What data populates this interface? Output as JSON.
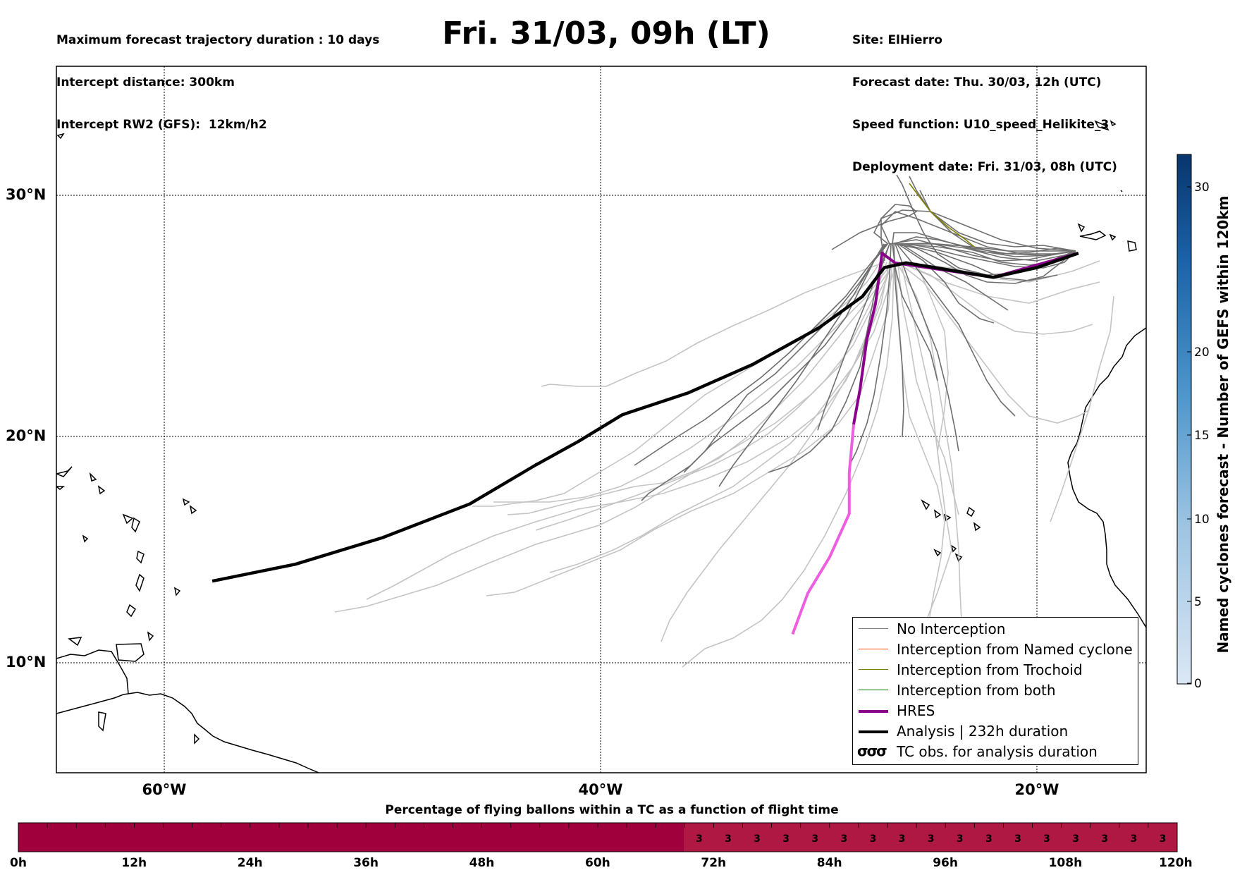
{
  "header": {
    "left_lines": [
      "Maximum forecast trajectory duration : 10 days",
      "Intercept distance: 300km",
      "Intercept RW2 (GFS):  12km/h2"
    ],
    "title": "Fri. 31/03, 09h (LT)",
    "right_lines": [
      "Site: ElHierro",
      "Forecast date: Thu. 30/03, 12h (UTC)",
      "Speed function: U10_speed_Helikite_3",
      "Deployment date: Fri. 31/03, 08h (UTC)"
    ]
  },
  "legend": {
    "items": [
      {
        "label": "No Interception",
        "color": "#808080"
      },
      {
        "label": "Interception from Named cyclone",
        "color": "#ff4500"
      },
      {
        "label": "Interception from Trochoid",
        "color": "#808000"
      },
      {
        "label": "Interception from both",
        "color": "#008000"
      },
      {
        "label": "HRES",
        "color": "#8b008b"
      },
      {
        "label": "Analysis | 232h duration",
        "color": "#000000"
      },
      {
        "label": "TC obs. for analysis duration",
        "symbol": "σσσ"
      }
    ]
  },
  "colorbar": {
    "label": "Named cyclones forecast - Number of GEFS within 120km",
    "ticks": [
      "0",
      "5",
      "10",
      "15",
      "20",
      "30"
    ]
  },
  "flight_bar": {
    "title": "Percentage of flying ballons within a TC as a function of flight time",
    "tick_labels": [
      "0h",
      "12h",
      "24h",
      "36h",
      "48h",
      "60h",
      "72h",
      "84h",
      "96h",
      "108h",
      "120h"
    ],
    "cell_value": "3"
  },
  "chart_data": {
    "type": "line",
    "title": "Fri. 31/03, 09h (LT)",
    "xlabel": "",
    "ylabel": "",
    "x_ticks": [
      "60°W",
      "40°W",
      "20°W"
    ],
    "y_ticks": [
      "30°N",
      "20°N",
      "10°N"
    ],
    "xlim": [
      -65,
      -15
    ],
    "ylim": [
      5,
      34
    ],
    "grid": true,
    "legend_position": "bottom-right",
    "series": [
      {
        "name": "Analysis | 232h duration",
        "lon_lat": [
          [
            -18.1,
            27.6
          ],
          [
            -20,
            27.0
          ],
          [
            -22,
            26.6
          ],
          [
            -24,
            26.9
          ],
          [
            -26,
            27.2
          ],
          [
            -27,
            27.0
          ],
          [
            -28,
            25.8
          ],
          [
            -30,
            24.5
          ],
          [
            -33,
            23.0
          ],
          [
            -36,
            21.8
          ],
          [
            -39,
            20.9
          ],
          [
            -41,
            19.8
          ],
          [
            -43,
            18.8
          ],
          [
            -46,
            17.2
          ],
          [
            -50,
            15.8
          ],
          [
            -54,
            14.7
          ],
          [
            -57.8,
            14.0
          ]
        ]
      },
      {
        "name": "HRES",
        "lon_lat": [
          [
            -18.1,
            27.6
          ],
          [
            -22,
            26.6
          ],
          [
            -25,
            27.0
          ],
          [
            -26.5,
            27.2
          ],
          [
            -27.1,
            27.6
          ],
          [
            -27.4,
            25.5
          ],
          [
            -27.8,
            24.0
          ],
          [
            -28.1,
            22.0
          ],
          [
            -28.4,
            20.5
          ]
        ]
      },
      {
        "name": "HRES (>120h)",
        "lon_lat": [
          [
            -28.4,
            20.5
          ],
          [
            -28.6,
            18.5
          ],
          [
            -28.6,
            16.8
          ],
          [
            -29.5,
            15.0
          ],
          [
            -30.5,
            13.5
          ],
          [
            -31.2,
            11.8
          ]
        ]
      }
    ]
  }
}
